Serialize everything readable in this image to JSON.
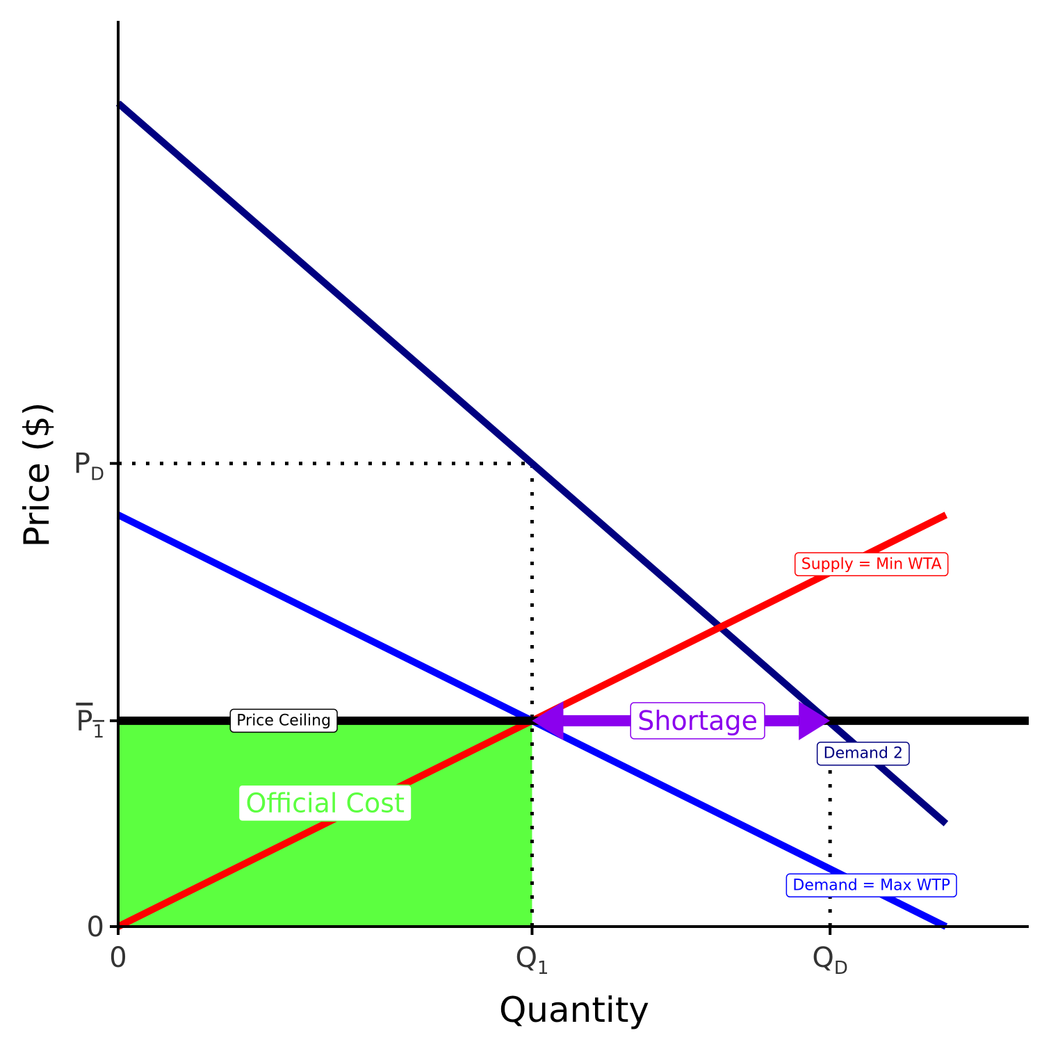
{
  "chart_data": {
    "type": "line",
    "xlabel": "Quantity",
    "ylabel": "Price ($)",
    "xlim": [
      0,
      11
    ],
    "ylim": [
      0,
      11
    ],
    "grid": false,
    "x_ticks": [
      {
        "value": 0,
        "label": "0",
        "sub": ""
      },
      {
        "value": 5,
        "label": "Q",
        "sub": "1"
      },
      {
        "value": 8.6,
        "label": "Q",
        "sub": "D"
      }
    ],
    "y_ticks": [
      {
        "value": 0,
        "label": "0",
        "sub": "",
        "overline": false
      },
      {
        "value": 2.5,
        "label": "P",
        "sub": "1",
        "overline": true
      },
      {
        "value": 5.625,
        "label": "P",
        "sub": "D",
        "overline": false
      }
    ],
    "series": [
      {
        "key": "demand",
        "color": "#0000FF",
        "x": [
          0,
          10
        ],
        "y": [
          5,
          0
        ]
      },
      {
        "key": "demand2",
        "color": "#000080",
        "x": [
          0,
          10
        ],
        "y": [
          10,
          1.25
        ]
      },
      {
        "key": "supply",
        "color": "#FF0000",
        "x": [
          0,
          10
        ],
        "y": [
          0,
          5
        ]
      },
      {
        "key": "ceiling",
        "color": "#000000",
        "x": [
          0,
          11
        ],
        "y": [
          2.5,
          2.5
        ]
      }
    ],
    "shaded_region": {
      "key": "official",
      "color": "#5CFF40",
      "x": [
        0,
        5
      ],
      "y": [
        0,
        2.5
      ]
    },
    "guides": [
      {
        "x": [
          0,
          5
        ],
        "y": [
          5.625,
          5.625
        ]
      },
      {
        "x": [
          5,
          5
        ],
        "y": [
          0,
          5.625
        ]
      },
      {
        "x": [
          8.6,
          8.6
        ],
        "y": [
          0,
          2
        ]
      }
    ],
    "arrow": {
      "color": "#8B00EE",
      "x": [
        5,
        8.6
      ],
      "y": [
        2.5,
        2.5
      ]
    },
    "annotations": [
      {
        "key": "supply",
        "text": "Supply = Min WTA",
        "x": 9.1,
        "y": 4.4,
        "color": "#FF0000",
        "size": "small"
      },
      {
        "key": "demand2",
        "text": "Demand 2",
        "x": 9.0,
        "y": 2.1,
        "color": "#000080",
        "size": "small"
      },
      {
        "key": "demand",
        "text": "Demand = Max WTP",
        "x": 9.1,
        "y": 0.5,
        "color": "#0000FF",
        "size": "small"
      },
      {
        "key": "ceiling",
        "text": "Price Ceiling",
        "x": 2.0,
        "y": 2.5,
        "color": "#000000",
        "size": "small"
      },
      {
        "key": "shortage",
        "text": "Shortage",
        "x": 7.0,
        "y": 2.5,
        "color": "#8B00EE",
        "size": "large"
      },
      {
        "key": "official",
        "text": "Official Cost",
        "x": 2.5,
        "y": 1.5,
        "color": "#5CFF40",
        "size": "large"
      }
    ]
  }
}
